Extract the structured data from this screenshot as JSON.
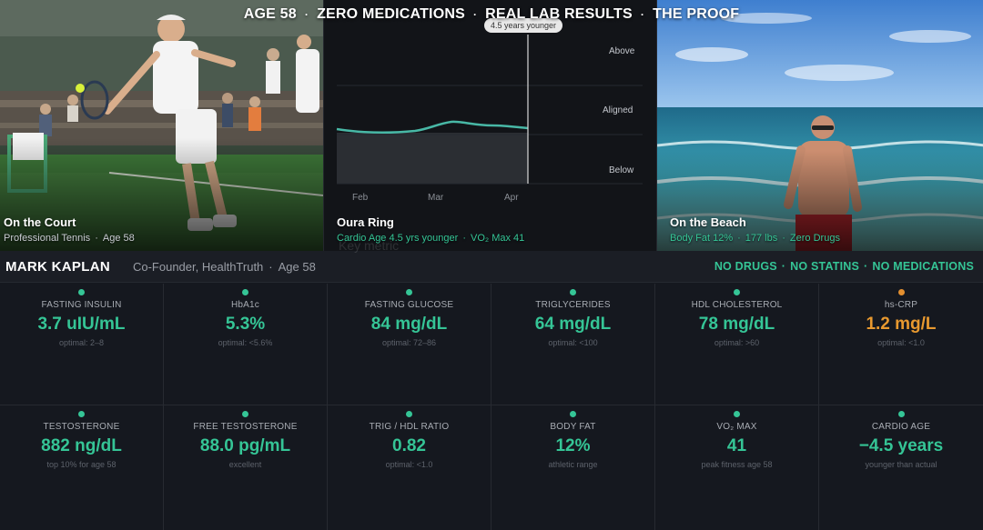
{
  "headline": {
    "parts": [
      "AGE 58",
      "ZERO MEDICATIONS",
      "REAL LAB RESULTS",
      "THE PROOF"
    ],
    "separator": "·"
  },
  "panels": {
    "court": {
      "title": "On the Court",
      "sub1": "Professional Tennis",
      "sub2": "Age 58"
    },
    "oura": {
      "title": "Oura Ring",
      "sub1": "Cardio Age 4.5 yrs younger",
      "sub2": "VO₂ Max 41",
      "chart": {
        "tooltip": "4.5 years younger",
        "bands": [
          "Above",
          "Aligned",
          "Below"
        ],
        "months": [
          "Feb",
          "Mar",
          "Apr"
        ]
      }
    },
    "beach": {
      "title": "On the Beach",
      "sub1": "Body Fat 12%",
      "sub2": "177 lbs",
      "sub3": "Zero Drugs"
    }
  },
  "profile": {
    "name": "MARK KAPLAN",
    "role": "Co-Founder, HealthTruth",
    "age": "Age 58",
    "badges": [
      "NO DRUGS",
      "NO STATINS",
      "NO MEDICATIONS"
    ],
    "ghost_text": "Key metric"
  },
  "metrics_row1": [
    {
      "label": "FASTING INSULIN",
      "value": "3.7 uIU/mL",
      "note": "optimal: 2–8",
      "status": "good"
    },
    {
      "label": "HbA1c",
      "value": "5.3%",
      "note": "optimal: <5.6%",
      "status": "good"
    },
    {
      "label": "FASTING GLUCOSE",
      "value": "84 mg/dL",
      "note": "optimal: 72–86",
      "status": "good"
    },
    {
      "label": "TRIGLYCERIDES",
      "value": "64 mg/dL",
      "note": "optimal: <100",
      "status": "good"
    },
    {
      "label": "HDL CHOLESTEROL",
      "value": "78 mg/dL",
      "note": "optimal: >60",
      "status": "good"
    },
    {
      "label": "hs-CRP",
      "value": "1.2 mg/L",
      "note": "optimal: <1.0",
      "status": "warn"
    }
  ],
  "metrics_row2": [
    {
      "label": "TESTOSTERONE",
      "value": "882 ng/dL",
      "note": "top 10% for age 58",
      "status": "good"
    },
    {
      "label": "FREE TESTOSTERONE",
      "value": "88.0 pg/mL",
      "note": "excellent",
      "status": "good"
    },
    {
      "label": "TRIG / HDL RATIO",
      "value": "0.82",
      "note": "optimal: <1.0",
      "status": "good"
    },
    {
      "label": "BODY FAT",
      "value": "12%",
      "note": "athletic range",
      "status": "good"
    },
    {
      "label": "VO₂ MAX",
      "value": "41",
      "note": "peak fitness age 58",
      "status": "good"
    },
    {
      "label": "CARDIO AGE",
      "value": "−4.5 years",
      "note": "younger than actual",
      "status": "good"
    }
  ],
  "colors": {
    "accent": "#35c596",
    "warn": "#e8992f",
    "background": "#15181f"
  }
}
